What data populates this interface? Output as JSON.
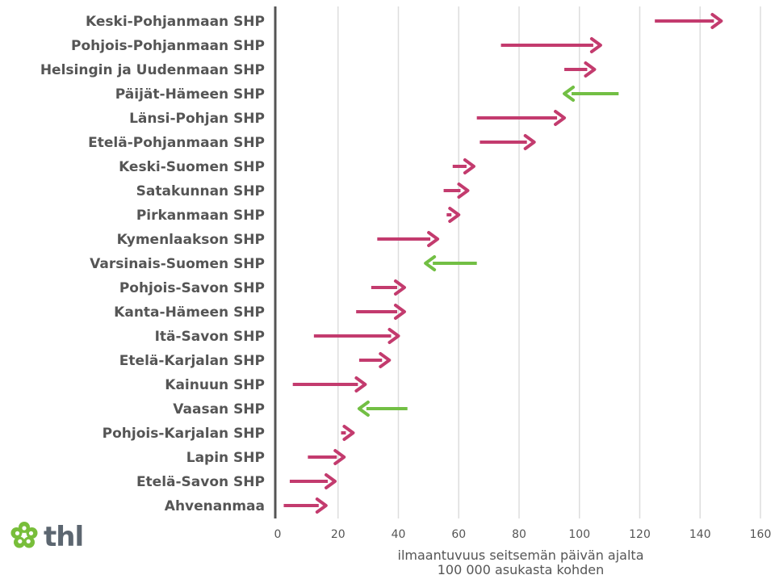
{
  "colors": {
    "increase": "#c33b6e",
    "decrease": "#72bf44",
    "grid": "#dddddd",
    "axis": "#555555",
    "text": "#555555",
    "logo_green": "#78be3a",
    "logo_text": "#5c6670"
  },
  "logo": {
    "text": "thl",
    "icon": "flower-icon"
  },
  "chart_data": {
    "type": "arrow",
    "xlabel": "ilmaantuvuus seitsemän päivän ajalta 100 000 asukasta kohden",
    "xlabel_lines": [
      "ilmaantuvuus seitsemän päivän ajalta",
      "100 000 asukasta kohden"
    ],
    "xlim": [
      0,
      160
    ],
    "xticks": [
      "0",
      "20",
      "40",
      "60",
      "80",
      "100",
      "120",
      "140",
      "160"
    ],
    "grid": true,
    "rows": [
      {
        "name": "Keski-Pohjanmaan SHP",
        "start": 125,
        "end": 147
      },
      {
        "name": "Pohjois-Pohjanmaan SHP",
        "start": 74,
        "end": 107
      },
      {
        "name": "Helsingin ja Uudenmaan SHP",
        "start": 95,
        "end": 105
      },
      {
        "name": "Päijät-Hämeen SHP",
        "start": 113,
        "end": 95
      },
      {
        "name": "Länsi-Pohjan SHP",
        "start": 66,
        "end": 95
      },
      {
        "name": "Etelä-Pohjanmaan SHP",
        "start": 67,
        "end": 85
      },
      {
        "name": "Keski-Suomen SHP",
        "start": 58,
        "end": 65
      },
      {
        "name": "Satakunnan SHP",
        "start": 55,
        "end": 63
      },
      {
        "name": "Pirkanmaan SHP",
        "start": 56,
        "end": 60
      },
      {
        "name": "Kymenlaakson SHP",
        "start": 33,
        "end": 53
      },
      {
        "name": "Varsinais-Suomen SHP",
        "start": 66,
        "end": 49
      },
      {
        "name": "Pohjois-Savon SHP",
        "start": 31,
        "end": 42
      },
      {
        "name": "Kanta-Hämeen SHP",
        "start": 26,
        "end": 42
      },
      {
        "name": "Itä-Savon SHP",
        "start": 12,
        "end": 40
      },
      {
        "name": "Etelä-Karjalan SHP",
        "start": 27,
        "end": 37
      },
      {
        "name": "Kainuun SHP",
        "start": 5,
        "end": 29
      },
      {
        "name": "Vaasan SHP",
        "start": 43,
        "end": 27
      },
      {
        "name": "Pohjois-Karjalan SHP",
        "start": 21,
        "end": 25
      },
      {
        "name": "Lapin SHP",
        "start": 10,
        "end": 22
      },
      {
        "name": "Etelä-Savon SHP",
        "start": 4,
        "end": 19
      },
      {
        "name": "Ahvenanmaa",
        "start": 2,
        "end": 16
      }
    ]
  }
}
